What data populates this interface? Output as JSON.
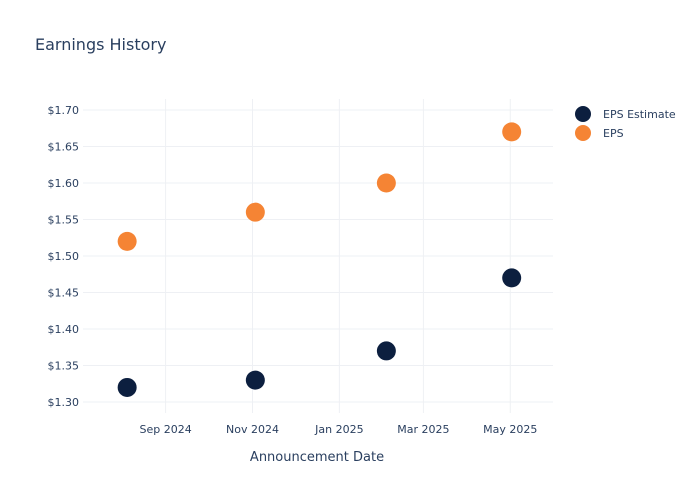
{
  "chart_data": {
    "type": "scatter",
    "title": "Earnings History",
    "xlabel": "Announcement Date",
    "ylabel": "",
    "x_tick_labels": [
      {
        "date": "2024-09-01",
        "label": "Sep 2024"
      },
      {
        "date": "2024-11-01",
        "label": "Nov 2024"
      },
      {
        "date": "2025-01-01",
        "label": "Jan 2025"
      },
      {
        "date": "2025-03-01",
        "label": "Mar 2025"
      },
      {
        "date": "2025-05-01",
        "label": "May 2025"
      }
    ],
    "y_tick_labels": [
      "$1.30",
      "$1.35",
      "$1.40",
      "$1.45",
      "$1.50",
      "$1.55",
      "$1.60",
      "$1.65",
      "$1.70"
    ],
    "y_ticks": [
      1.3,
      1.35,
      1.4,
      1.45,
      1.5,
      1.55,
      1.6,
      1.65,
      1.7
    ],
    "xlim": [
      "2024-07-05",
      "2025-05-31"
    ],
    "ylim": [
      1.285,
      1.715
    ],
    "grid": true,
    "legend_position": "top-right",
    "series": [
      {
        "name": "EPS Estimate",
        "color": "#0c1f3f",
        "points": [
          {
            "x": "2024-08-05",
            "y": 1.32
          },
          {
            "x": "2024-11-03",
            "y": 1.33
          },
          {
            "x": "2025-02-03",
            "y": 1.37
          },
          {
            "x": "2025-05-02",
            "y": 1.47
          }
        ]
      },
      {
        "name": "EPS",
        "color": "#f58434",
        "points": [
          {
            "x": "2024-08-05",
            "y": 1.52
          },
          {
            "x": "2024-11-03",
            "y": 1.56
          },
          {
            "x": "2025-02-03",
            "y": 1.6
          },
          {
            "x": "2025-05-02",
            "y": 1.67
          }
        ]
      }
    ]
  }
}
